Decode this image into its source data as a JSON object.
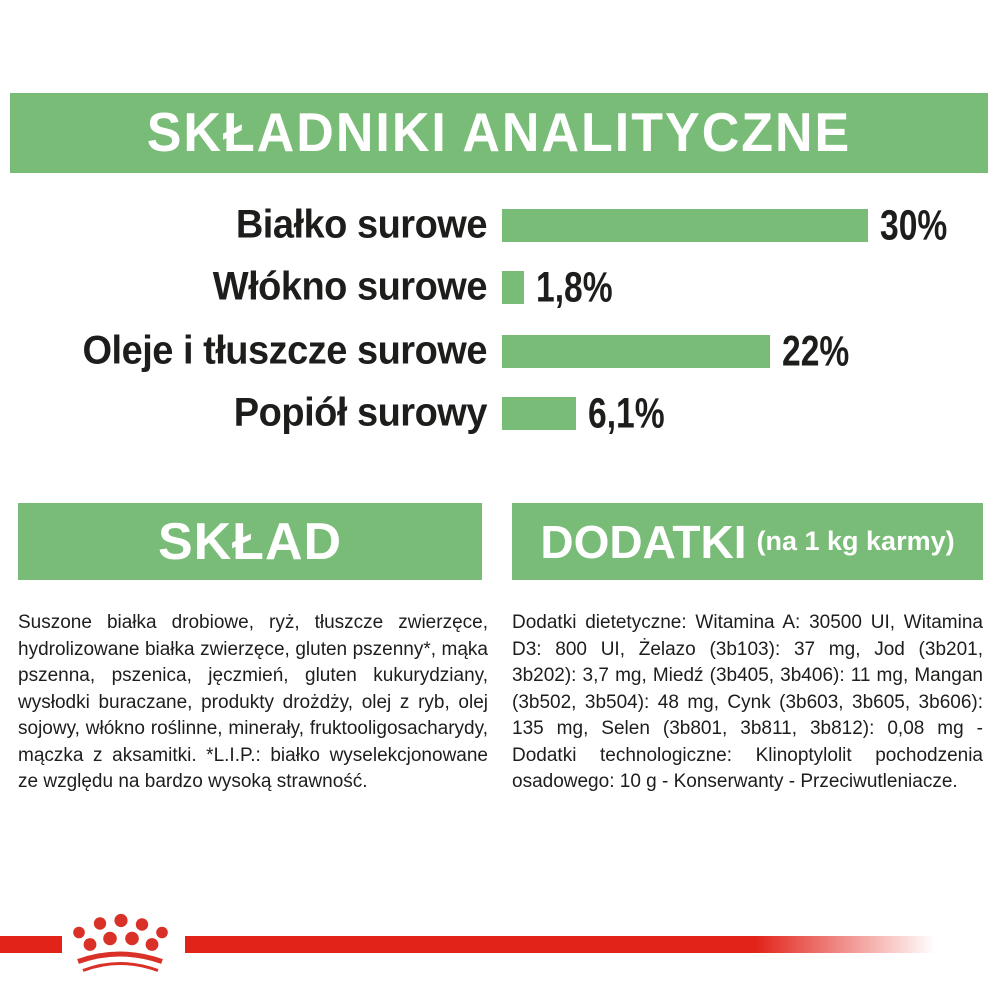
{
  "colors": {
    "green": "#79bc77",
    "red": "#e2231a",
    "crown_red": "#d93128",
    "text": "#1d1d1b"
  },
  "analytical": {
    "title": "SKŁADNIKI ANALITYCZNE",
    "rows": [
      {
        "label": "Białko surowe",
        "value": "30%",
        "percent": 30
      },
      {
        "label": "Włókno surowe",
        "value": "1,8%",
        "percent": 1.8
      },
      {
        "label": "Oleje i tłuszcze surowe",
        "value": "22%",
        "percent": 22
      },
      {
        "label": "Popiół surowy",
        "value": "6,1%",
        "percent": 6.1
      }
    ]
  },
  "composition": {
    "title": "SKŁAD",
    "body": "Suszone białka drobiowe, ryż, tłuszcze zwierzęce, hydrolizowane białka zwierzęce, gluten pszenny*, mąka pszenna, pszenica, jęczmień, gluten kukurydziany, wysłodki buraczane, produkty drożdży, olej z ryb, olej sojowy, włókno roślinne, minerały, fruktooligosacharydy, mączka z aksamitki. *L.I.P.: białko wyselekcjonowane ze względu na bardzo wysoką strawność."
  },
  "additives": {
    "title": "DODATKI",
    "subtitle": "(na 1 kg karmy)",
    "body": "Dodatki dietetyczne: Witamina A: 30500 UI, Witamina D3: 800 UI, Żelazo (3b103): 37 mg, Jod (3b201, 3b202): 3,7 mg, Miedź (3b405, 3b406): 11 mg, Mangan (3b502, 3b504): 48 mg, Cynk (3b603, 3b605, 3b606): 135 mg, Selen (3b801, 3b811, 3b812): 0,08 mg - Dodatki technologiczne: Klinoptylolit pochodzenia osadowego: 10 g - Konserwanty - Przeciwutleniacze."
  },
  "footer": {
    "logo": "royal-canin-crown"
  },
  "chart_data": {
    "type": "bar",
    "orientation": "horizontal",
    "title": "SKŁADNIKI ANALITYCZNE",
    "categories": [
      "Białko surowe",
      "Włókno surowe",
      "Oleje i tłuszcze surowe",
      "Popiół surowy"
    ],
    "values": [
      30,
      1.8,
      22,
      6.1
    ],
    "value_labels": [
      "30%",
      "1,8%",
      "22%",
      "6,1%"
    ],
    "unit": "%",
    "xlim": [
      0,
      30
    ],
    "grid": false,
    "legend": false,
    "bar_color": "#79bc77"
  }
}
